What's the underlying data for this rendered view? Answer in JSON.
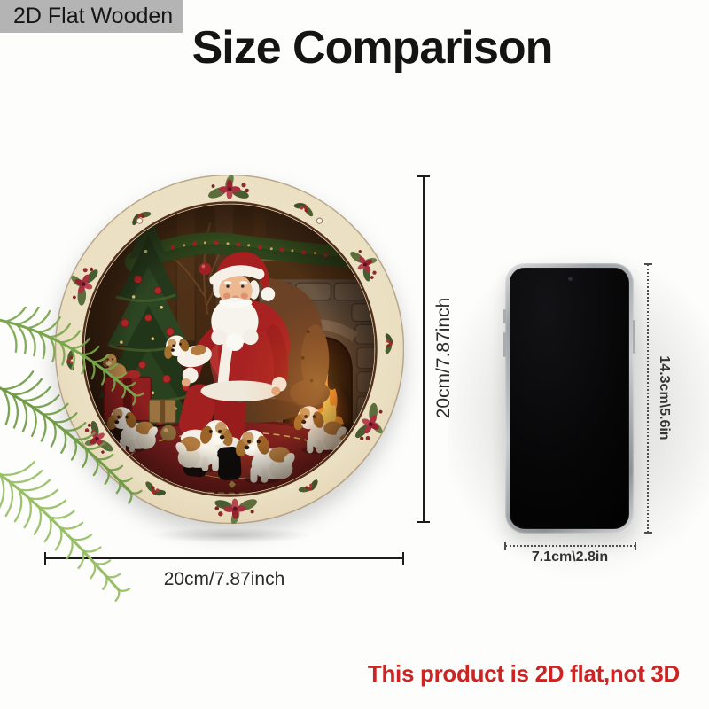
{
  "badge": {
    "label": "2D Flat Wooden"
  },
  "title": "Size Comparison",
  "sign": {
    "artwork": "santa-claus-with-puppies-round-wooden-sign",
    "height_label": "20cm/7.87inch",
    "width_label": "20cm/7.87inch"
  },
  "phone": {
    "device": "smartphone",
    "height_label": "14.3cm\\5.6in",
    "width_label": "7.1cm\\2.8in"
  },
  "note": {
    "text": "This product is 2D flat,not 3D"
  },
  "colors": {
    "badge_bg": "#b4b4b4",
    "note_red": "#ce2323",
    "dim_line": "#1c1c1c",
    "sign_border_cream": "#ede1c6"
  }
}
